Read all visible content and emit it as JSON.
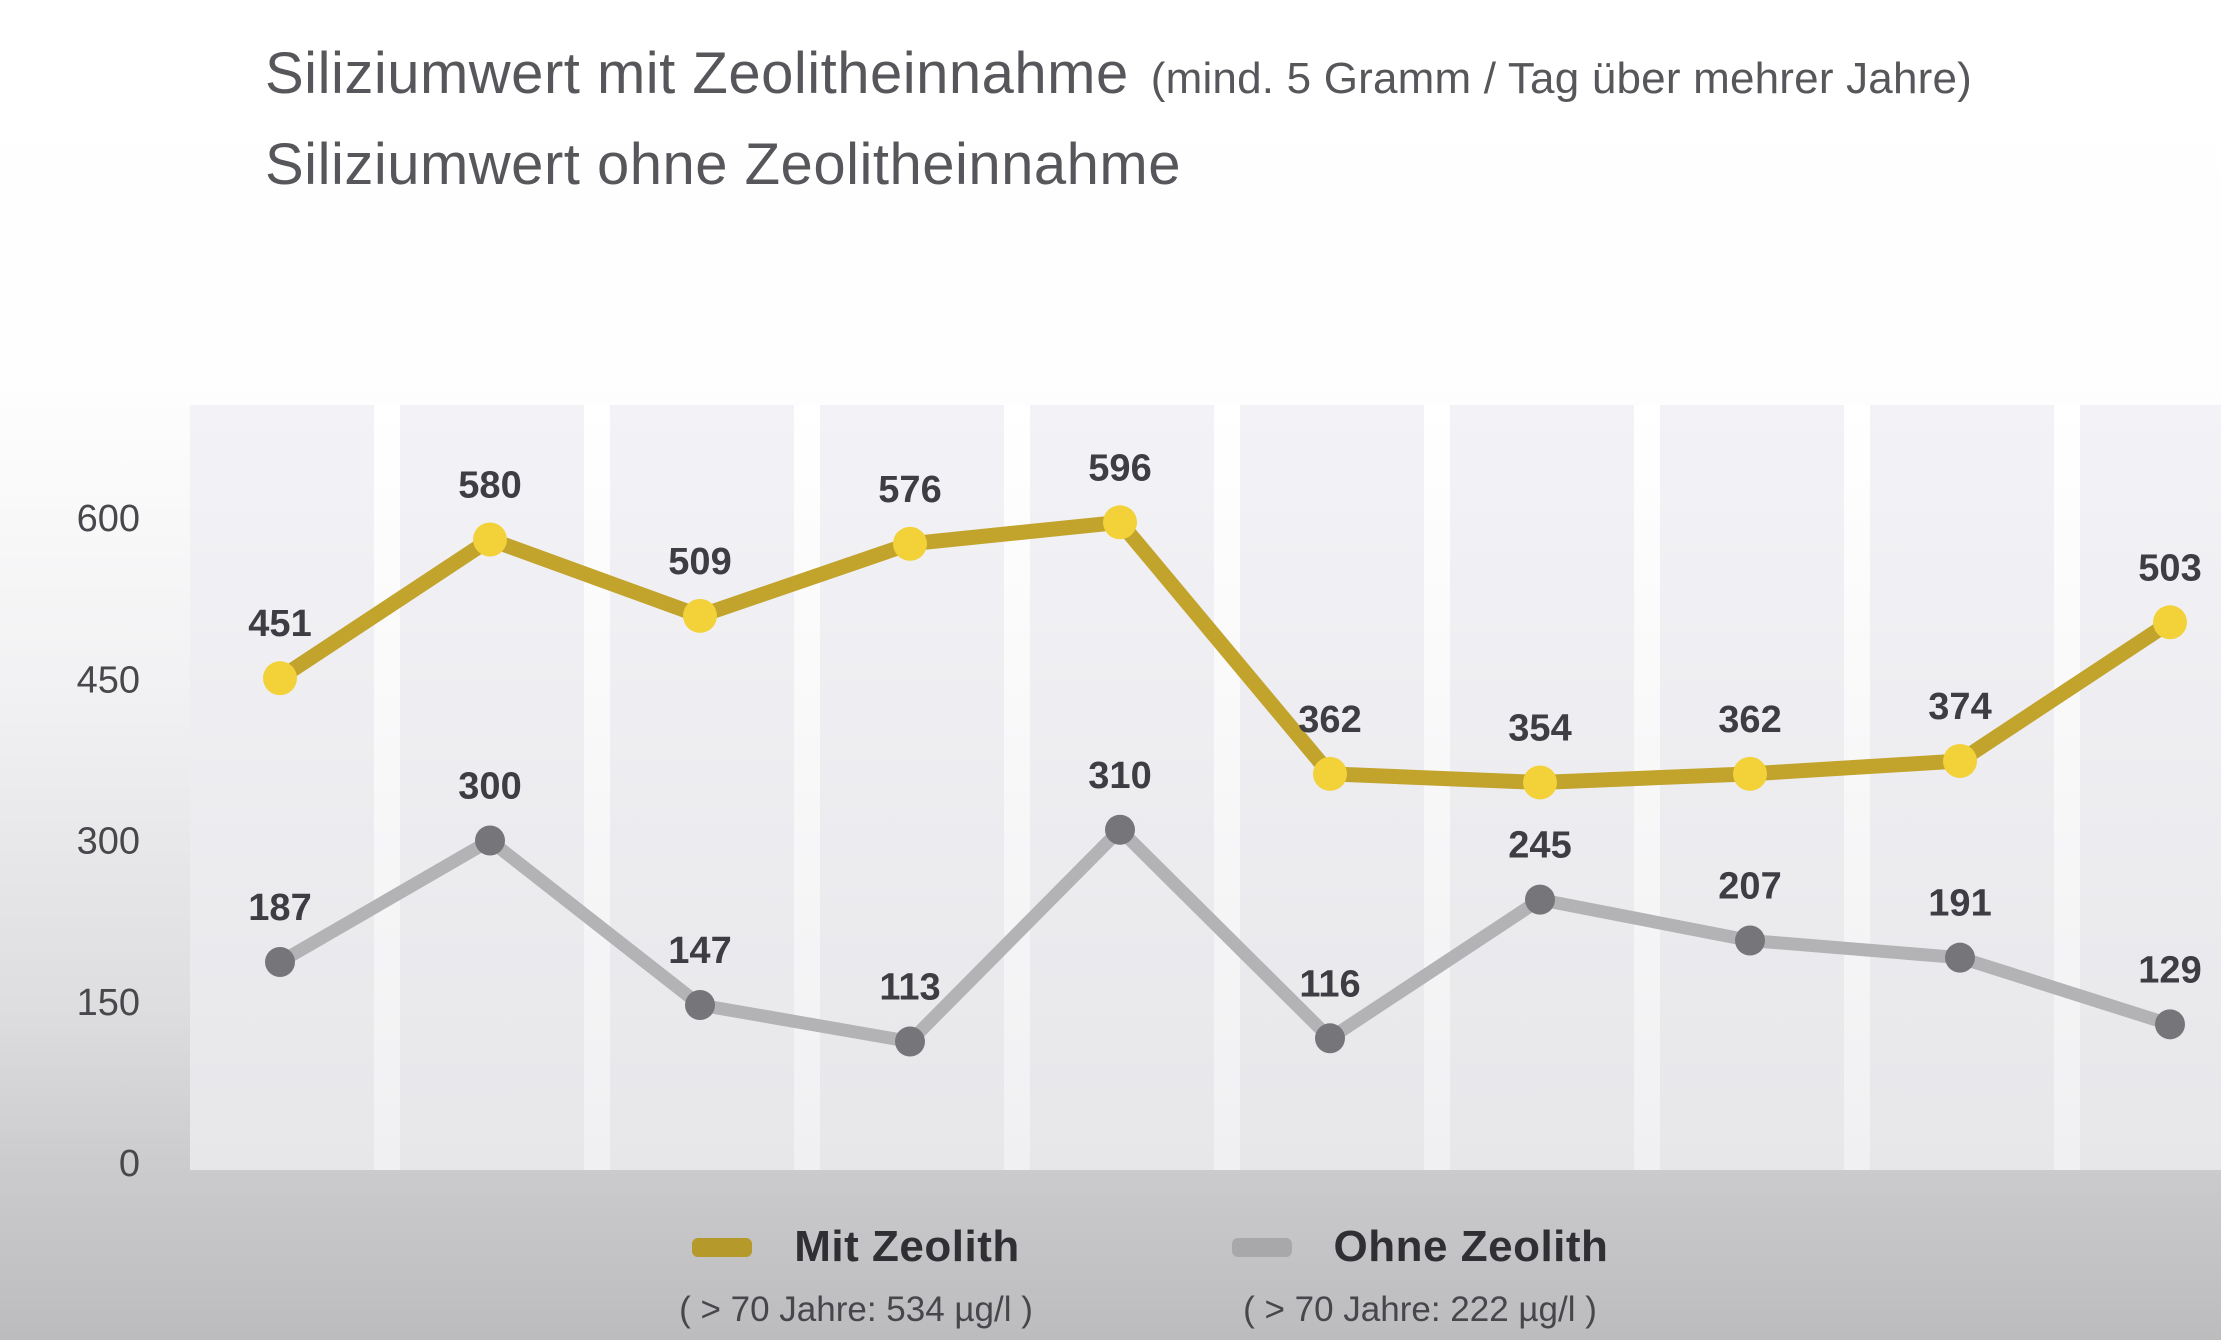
{
  "title": {
    "line1": "Siliziumwert mit Zeolitheinnahme",
    "line1_note": "(mind. 5 Gramm / Tag über mehrer Jahre)",
    "line2": "Siliziumwert ohne Zeolitheinnahme"
  },
  "colors": {
    "mit_zeolith_line": "#c2a42d",
    "mit_zeolith_point": "#f2d139",
    "ohne_zeolith_line": "#b3b3b6",
    "ohne_zeolith_point": "#76767a",
    "title_text": "#57575b",
    "axis_text": "#48484c",
    "data_label_text": "#3d3d43",
    "legend_swatch_mit": "#b5992b",
    "legend_swatch_ohne": "#a8a8aa",
    "stripe_top": "#f3f3f7",
    "stripe_bottom": "#e7e7ea"
  },
  "y_axis": {
    "tick_labels": [
      "600",
      "450",
      "300",
      "150",
      "0"
    ],
    "tick_values": [
      600,
      450,
      300,
      150,
      0
    ]
  },
  "legend": {
    "items": [
      {
        "label": "Mit Zeolith",
        "sub_label": "( > 70 Jahre: 534 µg/l )"
      },
      {
        "label": "Ohne Zeolith",
        "sub_label": "( > 70 Jahre: 222 µg/l )"
      }
    ]
  },
  "chart_data": {
    "type": "line",
    "title": "Siliziumwert mit Zeolitheinnahme (mind. 5 Gramm / Tag über mehrer Jahre) vs. Siliziumwert ohne Zeolitheinnahme",
    "x_labels_visible": false,
    "n_points": 10,
    "ylim": [
      0,
      650
    ],
    "yticks": [
      0,
      150,
      300,
      450,
      600
    ],
    "grid": "vertical-stripe-bands",
    "legend_position": "bottom",
    "series": [
      {
        "name": "Mit Zeolith",
        "annotation": "( > 70 Jahre: 534 µg/l )",
        "values": [
          451,
          580,
          509,
          576,
          596,
          362,
          354,
          362,
          374,
          503
        ]
      },
      {
        "name": "Ohne Zeolith",
        "annotation": "( > 70 Jahre: 222 µg/l )",
        "values": [
          187,
          300,
          147,
          113,
          310,
          116,
          245,
          207,
          191,
          129
        ]
      }
    ]
  }
}
